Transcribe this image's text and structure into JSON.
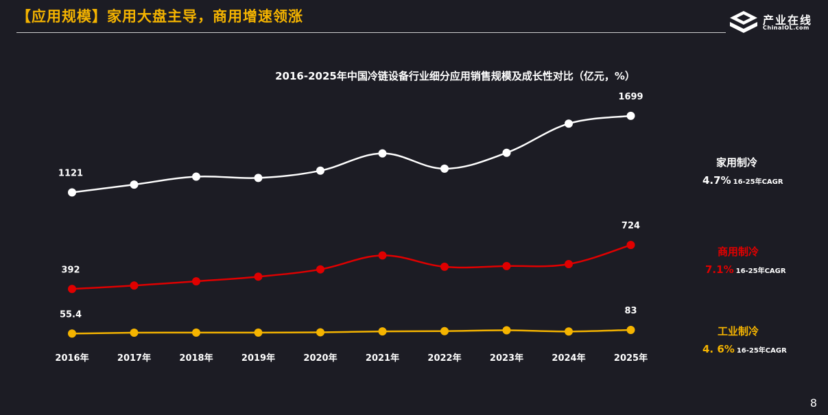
{
  "header": {
    "title": "【应用规模】家用大盘主导，商用增速领涨",
    "logo_cn": "产业在线",
    "logo_en": "ChinaIOL.com"
  },
  "chart_data": {
    "type": "line",
    "title": "2016-2025年中国冷链设备行业细分应用销售规模及成长性对比（亿元，%）",
    "categories": [
      "2016年",
      "2017年",
      "2018年",
      "2019年",
      "2020年",
      "2021年",
      "2022年",
      "2023年",
      "2024年",
      "2025年"
    ],
    "ylim": [
      0,
      1900
    ],
    "grid": false,
    "legend_position": "right",
    "series": [
      {
        "name": "家用制冷",
        "color": "#ffffff",
        "values": [
          1121,
          1180,
          1240,
          1230,
          1285,
          1415,
          1300,
          1420,
          1640,
          1699
        ],
        "labels": [
          "1121",
          "",
          "",
          "",
          "",
          "",
          "",
          "",
          "",
          "1699"
        ],
        "cagr": "4.7%",
        "cagr_note": "16-25年CAGR"
      },
      {
        "name": "商用制冷",
        "color": "#e00000",
        "values": [
          392,
          418,
          450,
          485,
          540,
          645,
          560,
          565,
          580,
          724
        ],
        "labels": [
          "392",
          "",
          "",
          "",
          "",
          "",
          "",
          "",
          "",
          "724"
        ],
        "cagr": "7.1%",
        "cagr_note": "16-25年CAGR"
      },
      {
        "name": "工业制冷",
        "color": "#f5b400",
        "values": [
          55.4,
          62,
          63,
          63,
          65,
          72,
          74,
          80,
          71,
          83
        ],
        "labels": [
          "55.4",
          "",
          "",
          "",
          "",
          "",
          "",
          "",
          "",
          "83"
        ],
        "cagr": "4. 6%",
        "cagr_note": "16-25年CAGR"
      }
    ]
  },
  "page_number": "8"
}
